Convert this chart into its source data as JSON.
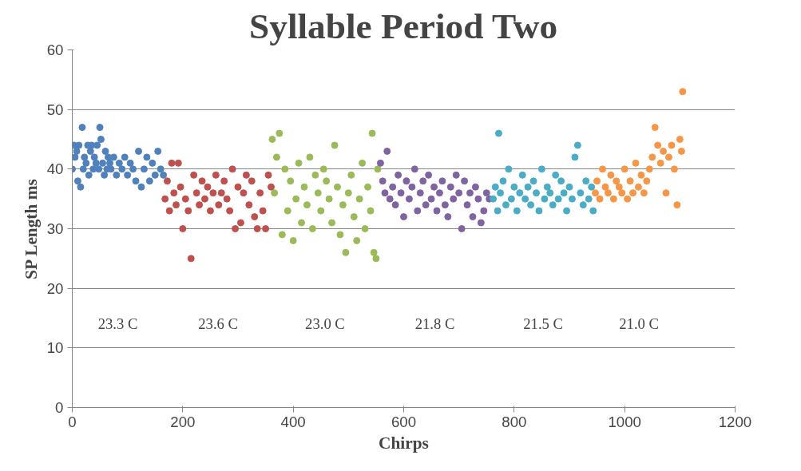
{
  "chart_data": {
    "type": "scatter",
    "title": "Syllable Period Two",
    "xlabel": "Chirps",
    "ylabel": "SP Length ms",
    "xlim": [
      0,
      1200
    ],
    "xticks": [
      0,
      200,
      400,
      600,
      800,
      1000,
      1200
    ],
    "ylim": [
      0,
      60
    ],
    "yticks": [
      0,
      10,
      20,
      30,
      40,
      50,
      60
    ],
    "grid": "y",
    "marker": "circle",
    "annotations": [
      "23.3 C",
      "23.6 C",
      "23.0 C",
      "21.8 C",
      "21.5 C",
      "21.0 C"
    ],
    "series": [
      {
        "color": "#4f81bd",
        "x": [
          0,
          3,
          5,
          8,
          10,
          12,
          15,
          18,
          20,
          22,
          25,
          28,
          30,
          33,
          35,
          38,
          40,
          43,
          45,
          48,
          50,
          52,
          55,
          58,
          60,
          63,
          65,
          68,
          70,
          75,
          80,
          85,
          90,
          95,
          100,
          105,
          110,
          115,
          120,
          125,
          130,
          135,
          140,
          145,
          150,
          155,
          160,
          165
        ],
        "values": [
          40,
          44,
          42,
          43,
          38,
          44,
          37,
          47,
          40,
          42,
          41,
          44,
          39,
          43,
          44,
          40,
          42,
          41,
          44,
          40,
          47,
          45,
          41,
          39,
          43,
          40,
          42,
          41,
          40,
          42,
          39,
          41,
          40,
          42,
          39,
          41,
          40,
          38,
          43,
          37,
          40,
          42,
          38,
          41,
          39,
          43,
          40,
          39
        ]
      },
      {
        "color": "#c0504d",
        "x": [
          168,
          172,
          176,
          180,
          184,
          188,
          192,
          196,
          200,
          205,
          210,
          215,
          220,
          225,
          230,
          235,
          240,
          245,
          250,
          255,
          260,
          265,
          270,
          275,
          280,
          285,
          290,
          295,
          300,
          305,
          310,
          315,
          320,
          325,
          330,
          335,
          340,
          345,
          350,
          355,
          360
        ],
        "values": [
          35,
          38,
          33,
          41,
          36,
          34,
          41,
          37,
          30,
          35,
          33,
          25,
          39,
          36,
          34,
          38,
          35,
          37,
          33,
          36,
          39,
          34,
          36,
          38,
          35,
          33,
          40,
          30,
          37,
          31,
          36,
          39,
          34,
          38,
          32,
          30,
          36,
          33,
          30,
          39,
          37
        ]
      },
      {
        "color": "#9bbb59",
        "x": [
          362,
          366,
          370,
          375,
          380,
          385,
          390,
          395,
          400,
          405,
          410,
          415,
          420,
          425,
          430,
          435,
          440,
          445,
          450,
          455,
          460,
          465,
          470,
          475,
          480,
          485,
          490,
          495,
          500,
          505,
          510,
          515,
          520,
          525,
          530,
          535,
          540,
          543,
          546,
          550,
          553
        ],
        "values": [
          45,
          36,
          42,
          46,
          29,
          40,
          33,
          38,
          28,
          35,
          41,
          31,
          37,
          34,
          42,
          30,
          39,
          36,
          33,
          40,
          38,
          35,
          31,
          44,
          37,
          29,
          34,
          26,
          36,
          39,
          32,
          28,
          35,
          41,
          30,
          37,
          33,
          46,
          26,
          25,
          40
        ]
      },
      {
        "color": "#8064a2",
        "x": [
          558,
          562,
          566,
          570,
          575,
          580,
          585,
          590,
          595,
          600,
          605,
          610,
          615,
          620,
          625,
          630,
          635,
          640,
          645,
          650,
          655,
          660,
          665,
          670,
          675,
          680,
          685,
          690,
          695,
          700,
          705,
          710,
          715,
          720,
          725,
          730,
          735,
          740,
          745,
          750,
          755
        ],
        "values": [
          41,
          38,
          36,
          43,
          35,
          37,
          34,
          39,
          36,
          32,
          38,
          35,
          37,
          40,
          33,
          36,
          38,
          34,
          39,
          35,
          37,
          33,
          36,
          38,
          34,
          32,
          37,
          35,
          39,
          36,
          30,
          38,
          34,
          36,
          32,
          37,
          35,
          31,
          33,
          36,
          35
        ]
      },
      {
        "color": "#4bacc6",
        "x": [
          762,
          766,
          770,
          772,
          775,
          780,
          785,
          790,
          795,
          800,
          805,
          810,
          815,
          820,
          825,
          830,
          835,
          840,
          845,
          850,
          855,
          860,
          865,
          870,
          875,
          880,
          885,
          890,
          895,
          900,
          905,
          910,
          915,
          920,
          925,
          930,
          935,
          940,
          943
        ],
        "values": [
          35,
          37,
          33,
          46,
          36,
          38,
          34,
          40,
          35,
          37,
          33,
          36,
          39,
          35,
          37,
          34,
          38,
          36,
          33,
          40,
          35,
          37,
          36,
          34,
          39,
          35,
          38,
          36,
          33,
          37,
          35,
          42,
          44,
          36,
          34,
          38,
          35,
          37,
          33
        ]
      },
      {
        "color": "#f79646",
        "x": [
          947,
          950,
          955,
          960,
          965,
          970,
          975,
          980,
          985,
          990,
          995,
          1000,
          1005,
          1010,
          1015,
          1020,
          1025,
          1030,
          1035,
          1040,
          1045,
          1050,
          1055,
          1060,
          1065,
          1070,
          1075,
          1080,
          1085,
          1090,
          1095,
          1100,
          1103,
          1105
        ],
        "values": [
          36,
          38,
          35,
          40,
          37,
          36,
          39,
          35,
          38,
          37,
          36,
          40,
          35,
          38,
          36,
          41,
          37,
          39,
          36,
          38,
          40,
          42,
          47,
          44,
          41,
          43,
          36,
          42,
          44,
          40,
          34,
          45,
          43,
          53
        ]
      }
    ]
  }
}
